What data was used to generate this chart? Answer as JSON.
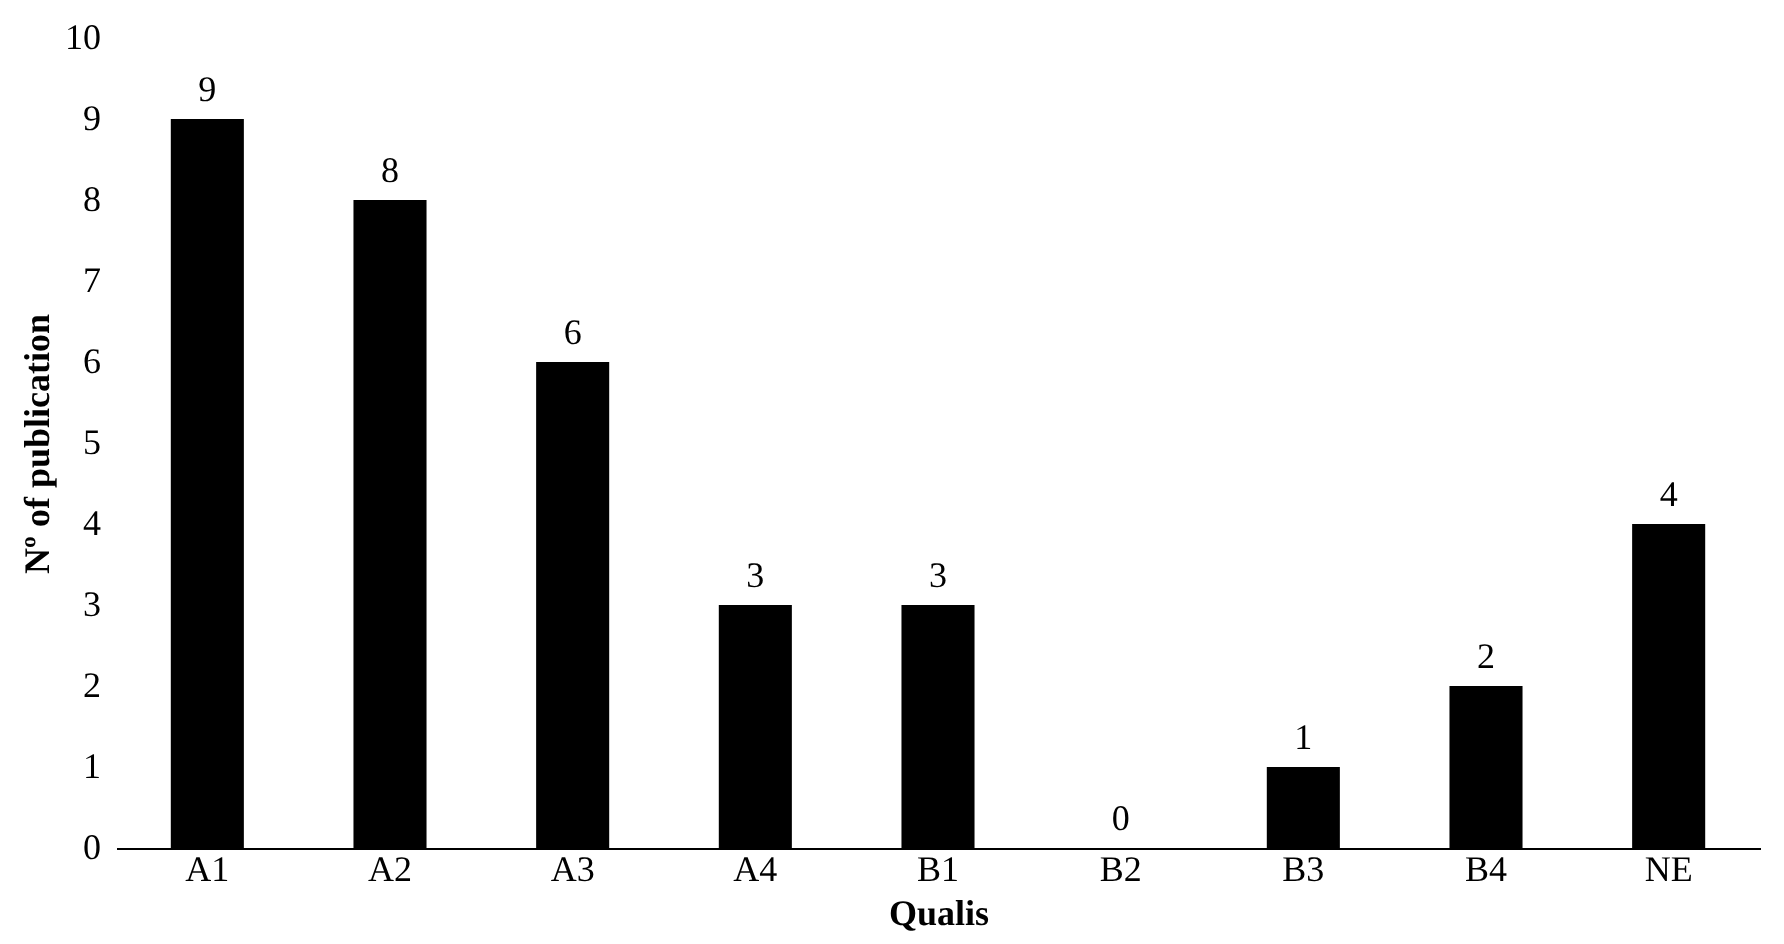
{
  "chart_data": {
    "type": "bar",
    "xlabel": "Qualis",
    "ylabel": "Nº of publication",
    "categories": [
      "A1",
      "A2",
      "A3",
      "A4",
      "B1",
      "B2",
      "B3",
      "B4",
      "NE"
    ],
    "values": [
      9,
      8,
      6,
      3,
      3,
      0,
      1,
      2,
      4
    ],
    "color": "#000000",
    "ylim": [
      0,
      10
    ],
    "yticks": [
      0,
      1,
      2,
      3,
      4,
      5,
      6,
      7,
      8,
      9,
      10
    ],
    "grid": false,
    "data_labels": true
  }
}
